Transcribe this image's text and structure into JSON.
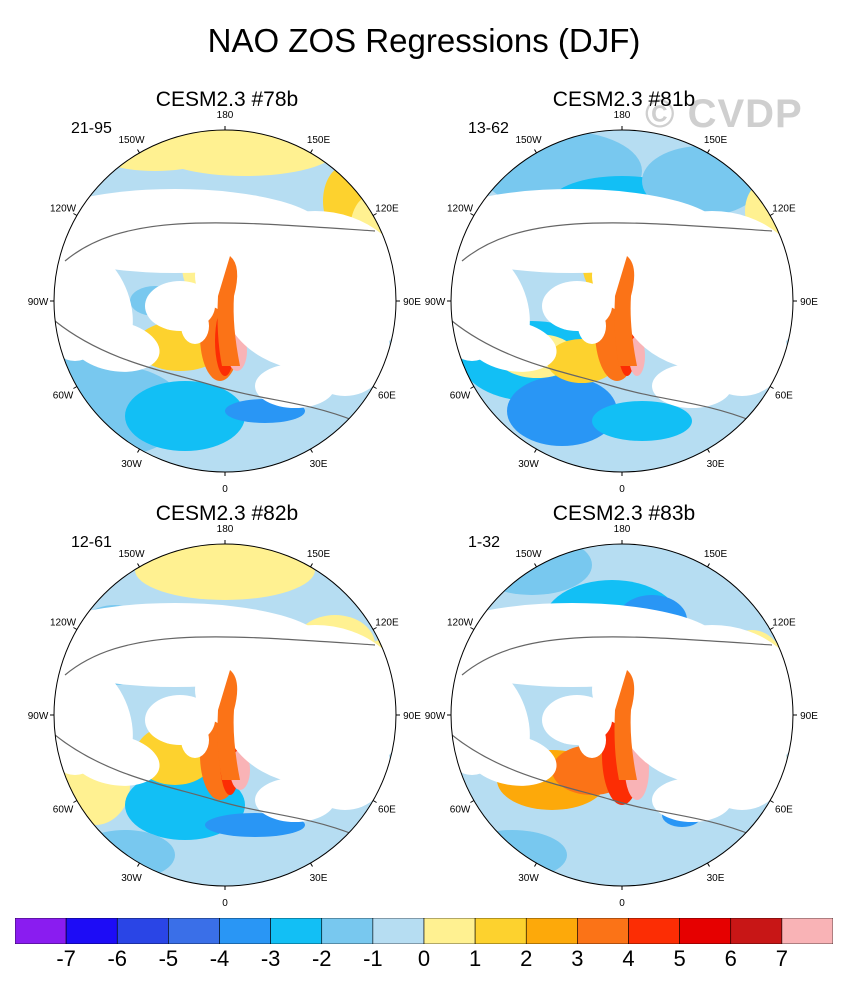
{
  "title": "NAO ZOS Regressions (DJF)",
  "watermark": "© CVDP",
  "panels": [
    {
      "title": "CESM2.3 #78b",
      "years": "21-95"
    },
    {
      "title": "CESM2.3 #81b",
      "years": "13-62"
    },
    {
      "title": "CESM2.3 #82b",
      "years": "12-61"
    },
    {
      "title": "CESM2.3 #83b",
      "years": "1-32"
    }
  ],
  "lon_labels": [
    "180",
    "150E",
    "120E",
    "90E",
    "60E",
    "30E",
    "0",
    "30W",
    "60W",
    "90W",
    "120W",
    "150W"
  ],
  "colorbar": {
    "labels": [
      "-7",
      "-6",
      "-5",
      "-4",
      "-3",
      "-2",
      "-1",
      "0",
      "1",
      "2",
      "3",
      "4",
      "5",
      "6",
      "7"
    ],
    "colors": [
      "#8a1cf0",
      "#1d0cf6",
      "#2a45e6",
      "#3a6fe8",
      "#2996f5",
      "#12bff5",
      "#78c8ef",
      "#b6ddf2",
      "#fff191",
      "#fdd22e",
      "#fda90a",
      "#fb7317",
      "#fc2d04",
      "#e60000",
      "#c81616",
      "#f9b3b6"
    ]
  }
}
